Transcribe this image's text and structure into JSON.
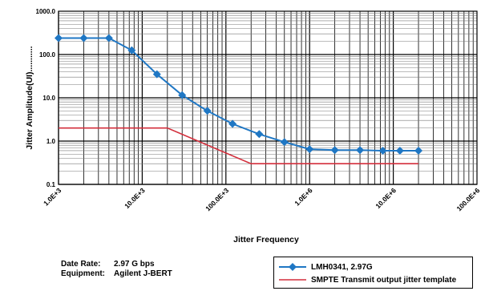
{
  "chart_data": {
    "type": "line",
    "title": "",
    "xlabel": "Jitter Frequency",
    "ylabel": "Jitter Amplitude(UI)...........",
    "x_scale": "log",
    "y_scale": "log",
    "xlim": [
      1000,
      100000000
    ],
    "ylim": [
      0.1,
      1000
    ],
    "x_tick_values": [
      1000,
      10000,
      100000,
      1000000,
      10000000,
      100000000
    ],
    "x_tick_labels": [
      "1.0E+3",
      "10.0E+3",
      "100.0E+3",
      "1.0E+6",
      "10.0E+6",
      "100.0E+6"
    ],
    "y_tick_values": [
      0.1,
      1,
      10,
      100,
      1000
    ],
    "y_tick_labels": [
      "0.1",
      "1.0",
      "10.0",
      "100.0",
      "1000.0"
    ],
    "grid": true,
    "series": [
      {
        "name": "LMH0341, 2.97G",
        "color": "#1f77c4",
        "marker": "diamond",
        "x": [
          1000,
          2000,
          4000,
          7500,
          15000,
          30000,
          60000,
          120000,
          250000,
          500000,
          1000000,
          2000000,
          4000000,
          7500000,
          12000000,
          20000000
        ],
        "y": [
          240,
          240,
          240,
          125,
          35,
          11.5,
          5,
          2.5,
          1.45,
          0.95,
          0.65,
          0.62,
          0.62,
          0.6,
          0.6,
          0.6
        ]
      },
      {
        "name": "SMPTE Transmit output jitter template",
        "color": "#d32f3c",
        "marker": "none",
        "x": [
          1000,
          20000,
          200000,
          20000000
        ],
        "y": [
          2,
          2,
          0.3,
          0.3
        ]
      }
    ],
    "legend_position": "bottom-right"
  },
  "info": {
    "data_rate_label": "Date Rate:",
    "data_rate_value": "2.97 G bps",
    "equipment_label": "Equipment:",
    "equipment_value": "Agilent J-BERT"
  }
}
